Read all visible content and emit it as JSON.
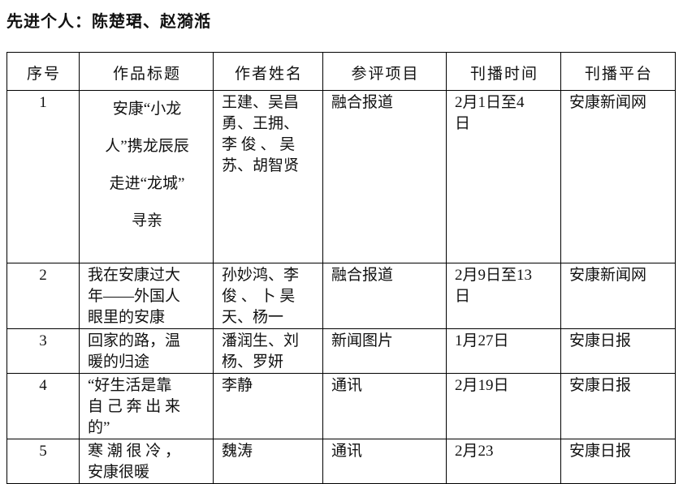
{
  "title": "先进个人：陈楚珺、赵漪湉",
  "table": {
    "headers": [
      "序号",
      "作品标题",
      "作者姓名",
      "参评项目",
      "刊播时间",
      "刊播平台"
    ],
    "rows": [
      {
        "no": "1",
        "title": [
          "安康“小龙",
          "人”携龙辰辰",
          "走进“龙城”",
          "寻亲"
        ],
        "authors": [
          "王建、吴昌",
          "勇、王拥、",
          "李 俊 、 吴",
          "苏、胡智贤"
        ],
        "category": [
          "融合报道"
        ],
        "date": [
          "2月1日至4",
          "日"
        ],
        "platform": [
          "安康新闻网"
        ]
      },
      {
        "no": "2",
        "title": [
          "我在安康过大",
          "年——外国人",
          "眼里的安康"
        ],
        "authors": [
          "孙妙鸿、李",
          "俊 、 卜 昊",
          "天、杨一"
        ],
        "category": [
          "融合报道"
        ],
        "date": [
          "2月9日至13",
          "日"
        ],
        "platform": [
          "安康新闻网"
        ]
      },
      {
        "no": "3",
        "title": [
          "回家的路，温",
          "暖的归途"
        ],
        "authors": [
          "潘润生、刘",
          "杨、罗妍"
        ],
        "category": [
          "新闻图片"
        ],
        "date": [
          "1月27日"
        ],
        "platform": [
          "安康日报"
        ]
      },
      {
        "no": "4",
        "title": [
          "“好生活是靠",
          "自 己 奔 出 来",
          "的”"
        ],
        "authors": [
          "李静"
        ],
        "category": [
          "通讯"
        ],
        "date": [
          "2月19日"
        ],
        "platform": [
          "安康日报"
        ]
      },
      {
        "no": "5",
        "title": [
          "寒 潮 很 冷 ，",
          "安康很暖"
        ],
        "authors": [
          "魏涛"
        ],
        "category": [
          "通讯"
        ],
        "date": [
          "2月23"
        ],
        "platform": [
          "安康日报"
        ]
      }
    ]
  }
}
